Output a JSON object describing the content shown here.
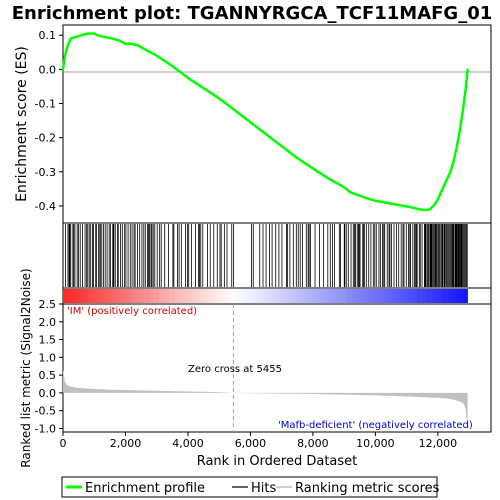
{
  "chart_data": {
    "type": "line",
    "title": "Enrichment plot: TGANNYRGCA_TCF11MAFG_01",
    "ylabel_top": "Enrichment score (ES)",
    "ylabel_bottom": "Ranked list metric (Signal2Noise)",
    "xlabel": "Rank in Ordered Dataset",
    "xlim": [
      0,
      13700
    ],
    "x_ticks": [
      0,
      2000,
      4000,
      6000,
      8000,
      10000,
      12000
    ],
    "x_tick_labels": [
      "0",
      "2,000",
      "4,000",
      "6,000",
      "8,000",
      "10,000",
      "12,000"
    ],
    "es_ylim": [
      -0.45,
      0.13
    ],
    "es_ticks": [
      0.1,
      0.0,
      -0.1,
      -0.2,
      -0.3,
      -0.4
    ],
    "es_tick_labels": [
      "0.1",
      "0.0",
      "-0.1",
      "-0.2",
      "-0.3",
      "-0.4"
    ],
    "metric_ylim": [
      -1.1,
      2.5
    ],
    "metric_ticks": [
      2.5,
      2.0,
      1.5,
      1.0,
      0.5,
      0.0,
      -0.5,
      -1.0
    ],
    "metric_tick_labels": [
      "2.5",
      "2.0",
      "1.5",
      "1.0",
      "0.5",
      "0.0",
      "-0.5",
      "-1.0"
    ],
    "max_rank": 12950,
    "zero_cross": 5455,
    "zero_cross_label": "Zero cross at 5455",
    "positive_label": "'IM' (positively correlated)",
    "negative_label": "'Mafb-deficient' (negatively correlated)",
    "legend": [
      "Enrichment profile",
      "Hits",
      "Ranking metric scores"
    ],
    "colors": {
      "profile": "#00ff00",
      "hits": "#000000",
      "metric": "#c0c0c0",
      "zero_line": "#a0a0a0",
      "pos": "#ff0000",
      "neg": "#0000ff"
    },
    "series": [
      {
        "name": "Enrichment profile",
        "x": [
          0,
          60,
          150,
          250,
          400,
          600,
          800,
          1000,
          1100,
          1300,
          1600,
          1800,
          2000,
          2200,
          2400,
          2600,
          3000,
          3500,
          4000,
          4500,
          5000,
          5500,
          6000,
          6500,
          7000,
          7500,
          8000,
          8500,
          9000,
          9200,
          9500,
          9800,
          10000,
          10300,
          10600,
          10900,
          11200,
          11400,
          11600,
          11750,
          11900,
          12000,
          12100,
          12200,
          12300,
          12400,
          12500,
          12600,
          12700,
          12800,
          12900,
          12950
        ],
        "y": [
          0.0,
          0.04,
          0.07,
          0.09,
          0.095,
          0.1,
          0.105,
          0.105,
          0.1,
          0.095,
          0.09,
          0.085,
          0.075,
          0.075,
          0.07,
          0.06,
          0.04,
          0.01,
          -0.025,
          -0.055,
          -0.085,
          -0.12,
          -0.155,
          -0.19,
          -0.225,
          -0.26,
          -0.29,
          -0.32,
          -0.345,
          -0.36,
          -0.37,
          -0.38,
          -0.385,
          -0.39,
          -0.395,
          -0.4,
          -0.405,
          -0.41,
          -0.412,
          -0.41,
          -0.395,
          -0.38,
          -0.36,
          -0.34,
          -0.32,
          -0.3,
          -0.27,
          -0.23,
          -0.18,
          -0.12,
          -0.05,
          0.0
        ]
      },
      {
        "name": "Ranking metric scores",
        "x": [
          0,
          20,
          60,
          150,
          400,
          800,
          1500,
          2500,
          3500,
          4500,
          5000,
          5455,
          6000,
          7000,
          8000,
          9000,
          10000,
          11000,
          11500,
          12000,
          12300,
          12500,
          12700,
          12850,
          12920,
          12950
        ],
        "y": [
          0.65,
          0.45,
          0.3,
          0.2,
          0.15,
          0.12,
          0.09,
          0.07,
          0.05,
          0.03,
          0.02,
          0.0,
          -0.01,
          -0.02,
          -0.03,
          -0.05,
          -0.07,
          -0.1,
          -0.12,
          -0.14,
          -0.16,
          -0.19,
          -0.24,
          -0.32,
          -0.55,
          -1.0
        ]
      }
    ]
  }
}
